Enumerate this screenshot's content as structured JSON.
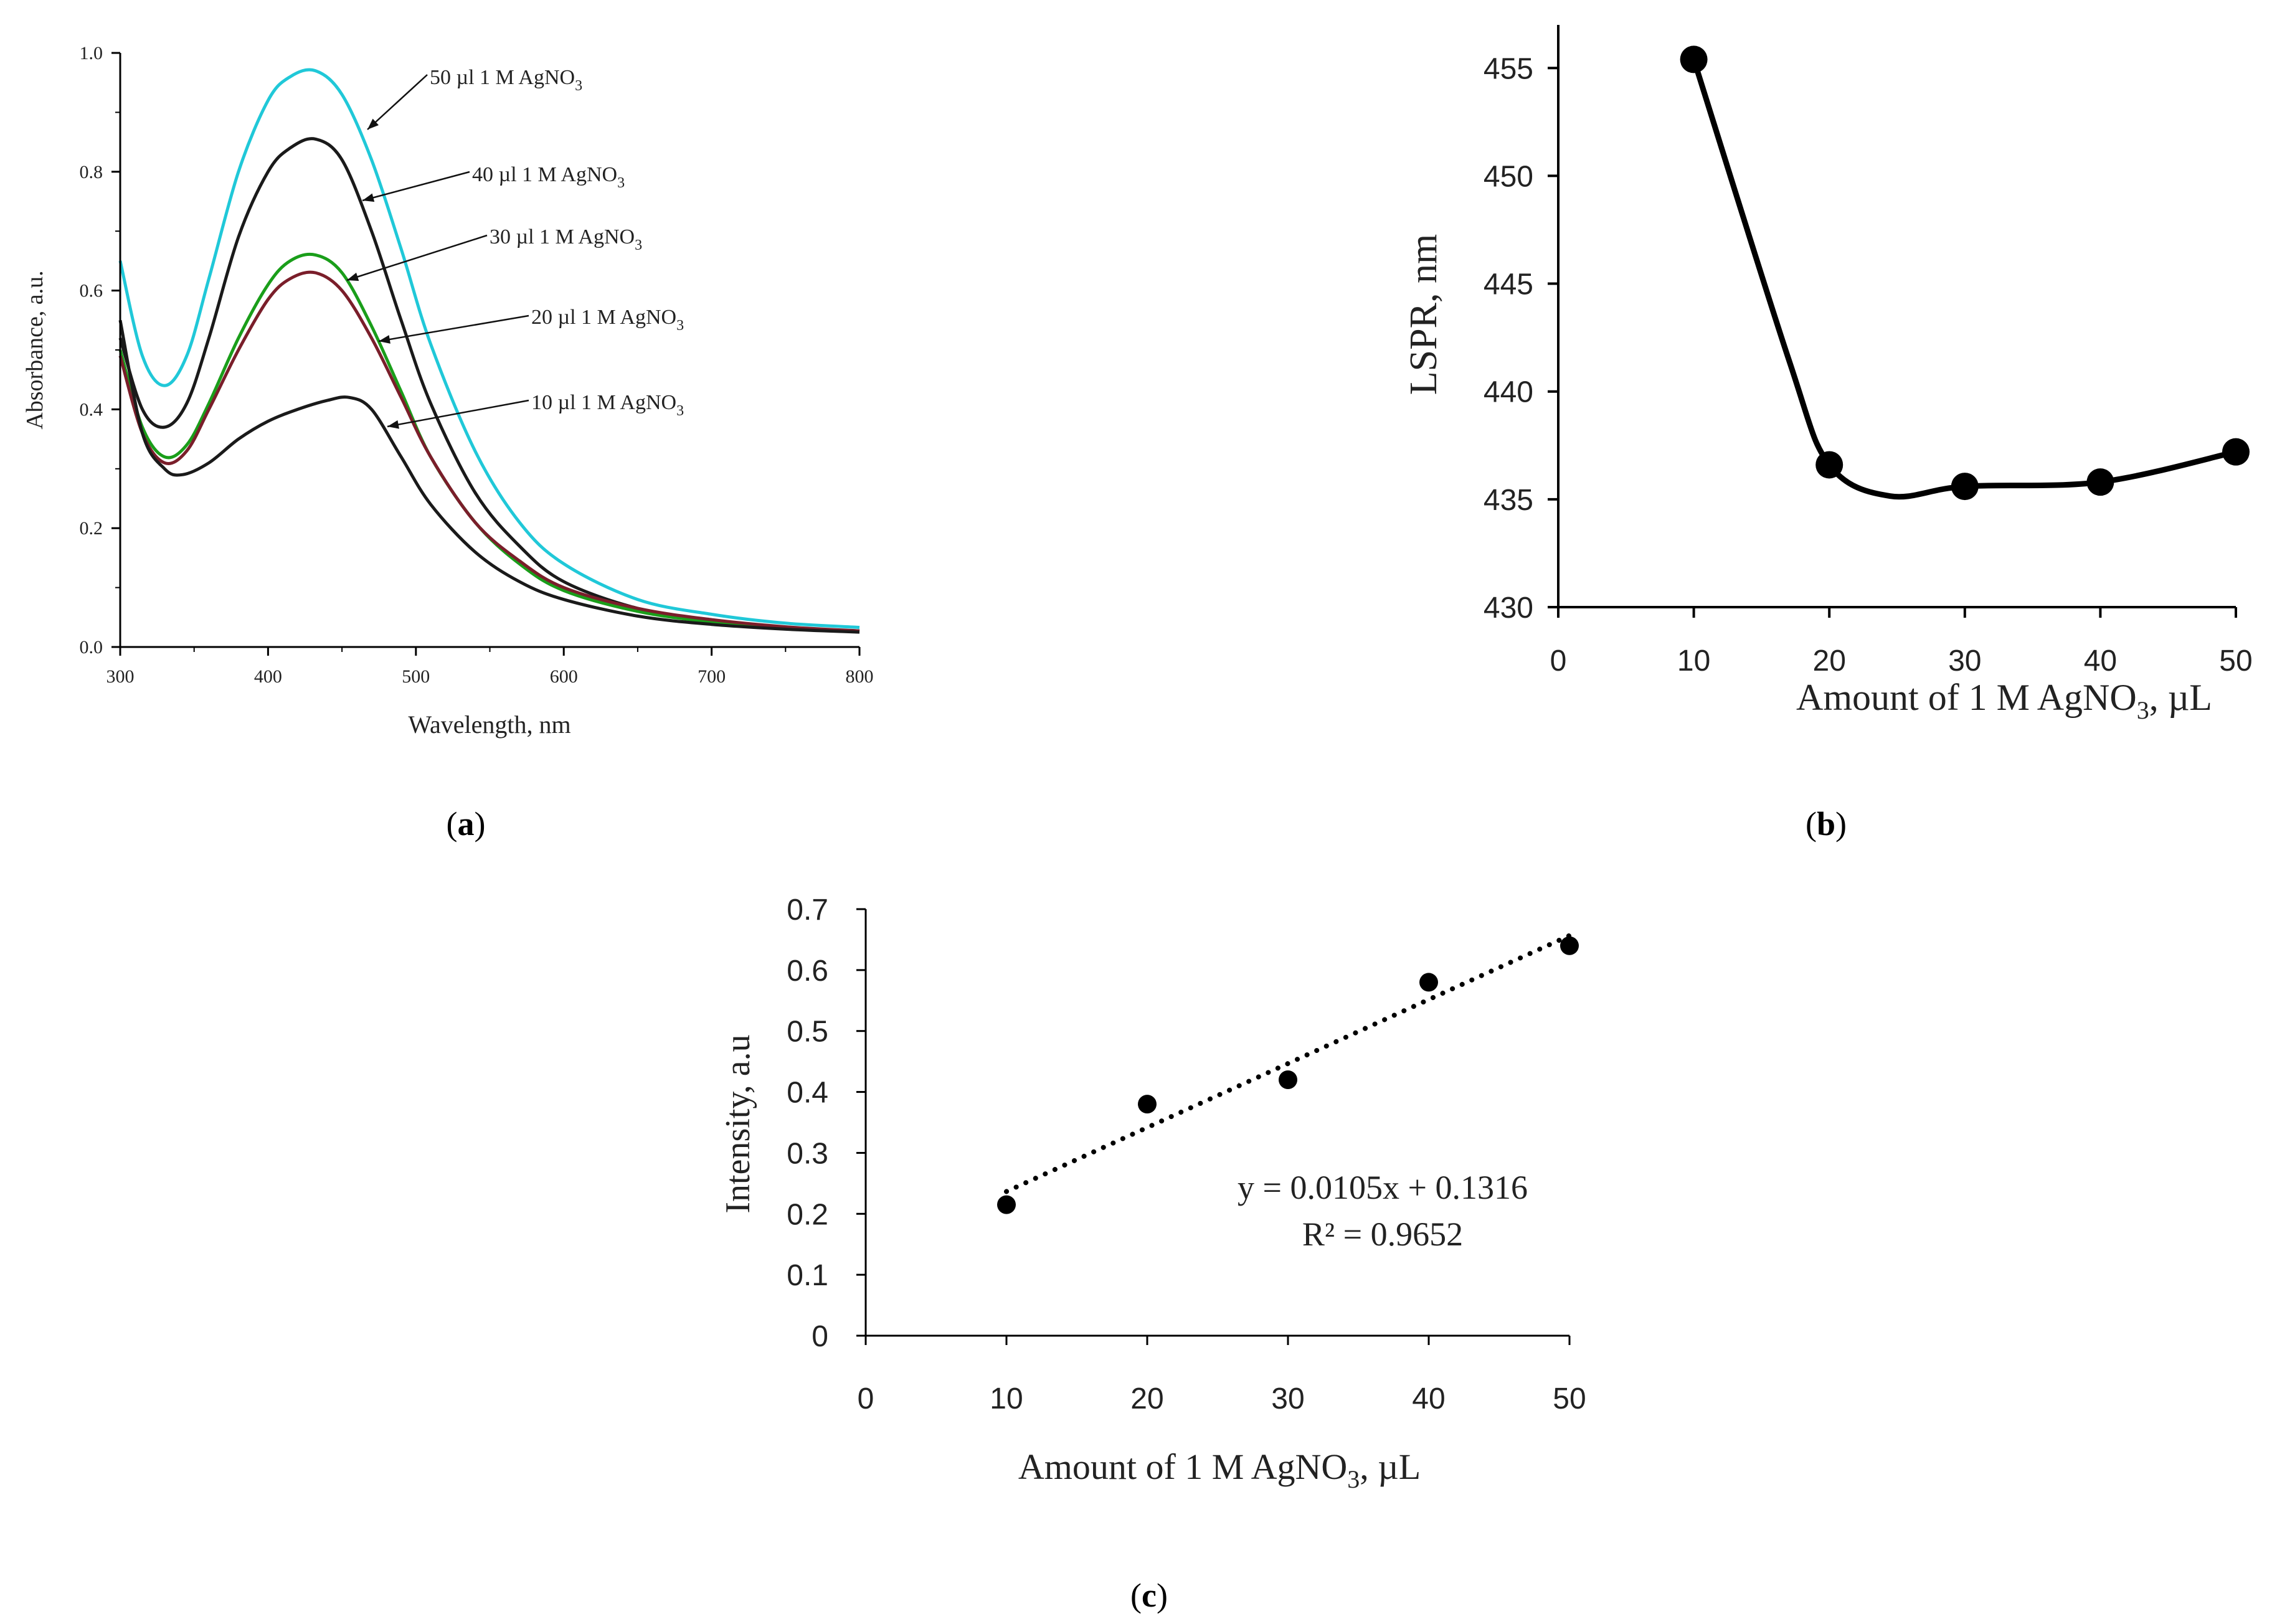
{
  "panels": {
    "a": {
      "label_open": "(",
      "label_letter": "a",
      "label_close": ")"
    },
    "b": {
      "label_open": "(",
      "label_letter": "b",
      "label_close": ")"
    },
    "c": {
      "label_open": "(",
      "label_letter": "c",
      "label_close": ")"
    }
  },
  "chart_data": [
    {
      "id": "a",
      "type": "line",
      "title": "",
      "xlabel": "Wavelength, nm",
      "ylabel": "Absorbance, a.u.",
      "xlim": [
        300,
        800
      ],
      "ylim": [
        0.0,
        1.0
      ],
      "xticks": [
        "300",
        "400",
        "500",
        "600",
        "700",
        "800"
      ],
      "yticks": [
        "0.0",
        "0.2",
        "0.4",
        "0.6",
        "0.8",
        "1.0"
      ],
      "grid": false,
      "series": [
        {
          "name": "50 µl 1 M AgNO3",
          "label_main": "50 µl 1 M AgNO",
          "label_sub": "3",
          "color": "#20c8d8",
          "x": [
            300,
            315,
            330,
            345,
            360,
            380,
            400,
            415,
            432,
            450,
            470,
            490,
            510,
            540,
            570,
            600,
            650,
            700,
            750,
            800
          ],
          "y": [
            0.65,
            0.49,
            0.44,
            0.49,
            0.62,
            0.8,
            0.92,
            0.96,
            0.97,
            0.93,
            0.82,
            0.67,
            0.51,
            0.33,
            0.21,
            0.14,
            0.08,
            0.055,
            0.04,
            0.033
          ]
        },
        {
          "name": "40 µl 1 M AgNO3",
          "label_main": "40 µl 1 M AgNO",
          "label_sub": "3",
          "color": "#1a1a1a",
          "x": [
            300,
            315,
            330,
            345,
            360,
            380,
            400,
            415,
            432,
            450,
            470,
            490,
            510,
            540,
            570,
            600,
            650,
            700,
            750,
            800
          ],
          "y": [
            0.52,
            0.4,
            0.37,
            0.41,
            0.52,
            0.69,
            0.8,
            0.84,
            0.855,
            0.82,
            0.7,
            0.55,
            0.41,
            0.26,
            0.17,
            0.11,
            0.065,
            0.045,
            0.033,
            0.027
          ]
        },
        {
          "name": "30 µl 1 M AgNO3",
          "label_main": "30 µl 1 M AgNO",
          "label_sub": "3",
          "color": "#1a9e1a",
          "x": [
            300,
            315,
            330,
            345,
            360,
            380,
            400,
            415,
            432,
            450,
            470,
            490,
            510,
            540,
            570,
            600,
            650,
            700,
            750,
            800
          ],
          "y": [
            0.5,
            0.37,
            0.32,
            0.34,
            0.41,
            0.52,
            0.61,
            0.65,
            0.66,
            0.63,
            0.54,
            0.43,
            0.32,
            0.21,
            0.14,
            0.095,
            0.06,
            0.042,
            0.032,
            0.026
          ]
        },
        {
          "name": "20 µl 1 M AgNO3",
          "label_main": "20 µl 1 M AgNO",
          "label_sub": "3",
          "color": "#7a1e2a",
          "x": [
            300,
            315,
            330,
            345,
            360,
            380,
            400,
            415,
            432,
            450,
            470,
            490,
            510,
            540,
            570,
            600,
            650,
            700,
            750,
            800
          ],
          "y": [
            0.49,
            0.36,
            0.31,
            0.33,
            0.4,
            0.5,
            0.585,
            0.62,
            0.63,
            0.6,
            0.52,
            0.42,
            0.32,
            0.21,
            0.145,
            0.1,
            0.065,
            0.046,
            0.034,
            0.027
          ]
        },
        {
          "name": "10 µl 1 M AgNO3",
          "label_main": "10 µl 1 M AgNO",
          "label_sub": "3",
          "color": "#1a1a1a",
          "x": [
            300,
            315,
            330,
            342,
            360,
            380,
            400,
            420,
            440,
            455,
            470,
            490,
            510,
            540,
            570,
            600,
            650,
            700,
            750,
            800
          ],
          "y": [
            0.55,
            0.36,
            0.3,
            0.29,
            0.31,
            0.35,
            0.38,
            0.4,
            0.415,
            0.42,
            0.4,
            0.32,
            0.24,
            0.16,
            0.11,
            0.08,
            0.052,
            0.038,
            0.03,
            0.025
          ]
        }
      ]
    },
    {
      "id": "b",
      "type": "line",
      "title": "",
      "xlabel_main": "Amount of 1 M AgNO",
      "xlabel_sub": "3",
      "xlabel_tail": ",  µL",
      "ylabel": "LSPR, nm",
      "xlim": [
        0,
        50
      ],
      "ylim": [
        430,
        457
      ],
      "xticks": [
        "0",
        "10",
        "20",
        "30",
        "40",
        "50"
      ],
      "yticks": [
        "430",
        "435",
        "440",
        "445",
        "450",
        "455"
      ],
      "grid": false,
      "x": [
        10,
        20,
        30,
        40,
        50
      ],
      "y": [
        455.4,
        436.6,
        435.6,
        435.8,
        437.2
      ]
    },
    {
      "id": "c",
      "type": "scatter",
      "title": "",
      "xlabel_main": "Amount of 1 M AgNO",
      "xlabel_sub": "3",
      "xlabel_tail": ", µL",
      "ylabel": "Intensity, a.u",
      "xlim": [
        0,
        50
      ],
      "ylim": [
        0,
        0.7
      ],
      "xticks": [
        "0",
        "10",
        "20",
        "30",
        "40",
        "50"
      ],
      "yticks": [
        "0",
        "0.1",
        "0.2",
        "0.3",
        "0.4",
        "0.5",
        "0.6",
        "0.7"
      ],
      "grid": false,
      "x": [
        10,
        20,
        30,
        40,
        50
      ],
      "y": [
        0.215,
        0.38,
        0.42,
        0.58,
        0.64
      ],
      "trendline": {
        "slope": 0.0105,
        "intercept": 0.1316,
        "style": "dotted"
      },
      "equation": "y = 0.0105x + 0.1316",
      "r_squared": "R² = 0.9652"
    }
  ]
}
